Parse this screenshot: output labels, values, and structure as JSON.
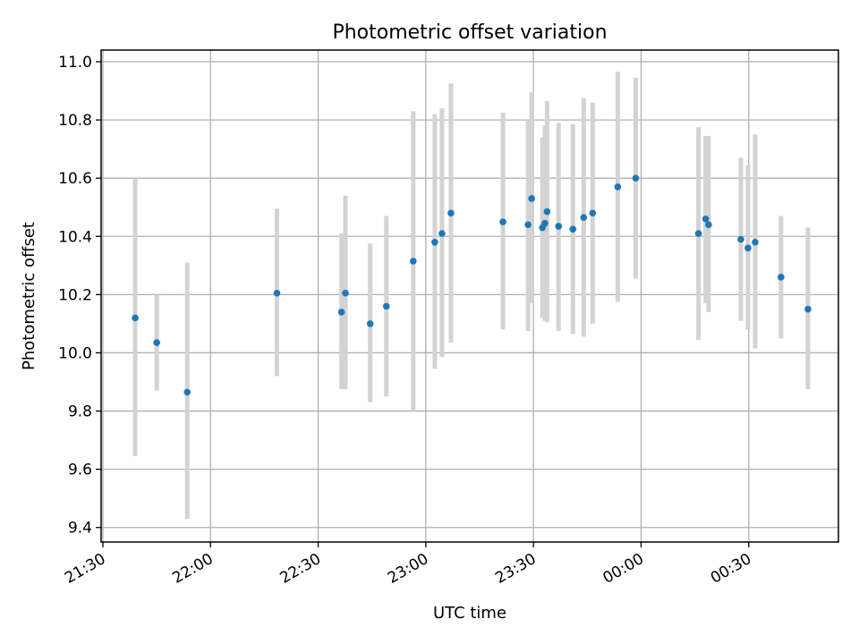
{
  "chart_data": {
    "type": "scatter",
    "title": "Photometric offset variation",
    "xlabel": "UTC time",
    "ylabel": "Photometric offset",
    "x_axis": {
      "unit": "minutes after 21:30 UTC",
      "min": -0.5,
      "max": 205,
      "ticks": [
        {
          "value": 0,
          "label": "21:30"
        },
        {
          "value": 30,
          "label": "22:00"
        },
        {
          "value": 60,
          "label": "22:30"
        },
        {
          "value": 90,
          "label": "23:00"
        },
        {
          "value": 120,
          "label": "23:30"
        },
        {
          "value": 150,
          "label": "00:00"
        },
        {
          "value": 180,
          "label": "00:30"
        }
      ]
    },
    "y_axis": {
      "min": 9.35,
      "max": 11.04,
      "ticks": [
        {
          "value": 9.4,
          "label": "9.4"
        },
        {
          "value": 9.6,
          "label": "9.6"
        },
        {
          "value": 9.8,
          "label": "9.8"
        },
        {
          "value": 10.0,
          "label": "10.0"
        },
        {
          "value": 10.2,
          "label": "10.2"
        },
        {
          "value": 10.4,
          "label": "10.4"
        },
        {
          "value": 10.6,
          "label": "10.6"
        },
        {
          "value": 10.8,
          "label": "10.8"
        },
        {
          "value": 11.0,
          "label": "11.0"
        }
      ]
    },
    "grid": true,
    "colors": {
      "points": "#1f77b4",
      "errorbars": "#d3d3d3",
      "grid": "#b0b0b0"
    },
    "series": [
      {
        "points": [
          {
            "x": 9.0,
            "y": 10.12,
            "ylo": 9.645,
            "yhi": 10.6
          },
          {
            "x": 15.0,
            "y": 10.035,
            "ylo": 9.87,
            "yhi": 10.2
          },
          {
            "x": 23.5,
            "y": 9.865,
            "ylo": 9.43,
            "yhi": 10.31
          },
          {
            "x": 48.5,
            "y": 10.205,
            "ylo": 9.92,
            "yhi": 10.495
          },
          {
            "x": 66.5,
            "y": 10.14,
            "ylo": 9.875,
            "yhi": 10.41
          },
          {
            "x": 67.6,
            "y": 10.205,
            "ylo": 9.875,
            "yhi": 10.54
          },
          {
            "x": 74.5,
            "y": 10.1,
            "ylo": 9.83,
            "yhi": 10.375
          },
          {
            "x": 79.0,
            "y": 10.16,
            "ylo": 9.85,
            "yhi": 10.47
          },
          {
            "x": 86.5,
            "y": 10.315,
            "ylo": 9.8,
            "yhi": 10.83
          },
          {
            "x": 92.5,
            "y": 10.38,
            "ylo": 9.945,
            "yhi": 10.82
          },
          {
            "x": 94.5,
            "y": 10.41,
            "ylo": 9.985,
            "yhi": 10.84
          },
          {
            "x": 97.0,
            "y": 10.48,
            "ylo": 10.035,
            "yhi": 10.925
          },
          {
            "x": 111.5,
            "y": 10.45,
            "ylo": 10.08,
            "yhi": 10.825
          },
          {
            "x": 118.5,
            "y": 10.44,
            "ylo": 10.075,
            "yhi": 10.8
          },
          {
            "x": 119.5,
            "y": 10.53,
            "ylo": 10.17,
            "yhi": 10.895
          },
          {
            "x": 122.5,
            "y": 10.43,
            "ylo": 10.12,
            "yhi": 10.74
          },
          {
            "x": 123.2,
            "y": 10.445,
            "ylo": 10.11,
            "yhi": 10.78
          },
          {
            "x": 123.8,
            "y": 10.485,
            "ylo": 10.105,
            "yhi": 10.865
          },
          {
            "x": 127.0,
            "y": 10.435,
            "ylo": 10.075,
            "yhi": 10.79
          },
          {
            "x": 131.0,
            "y": 10.425,
            "ylo": 10.065,
            "yhi": 10.785
          },
          {
            "x": 134.0,
            "y": 10.465,
            "ylo": 10.055,
            "yhi": 10.875
          },
          {
            "x": 136.5,
            "y": 10.48,
            "ylo": 10.1,
            "yhi": 10.86
          },
          {
            "x": 143.5,
            "y": 10.57,
            "ylo": 10.175,
            "yhi": 10.965
          },
          {
            "x": 148.5,
            "y": 10.6,
            "ylo": 10.255,
            "yhi": 10.945
          },
          {
            "x": 166.0,
            "y": 10.41,
            "ylo": 10.045,
            "yhi": 10.775
          },
          {
            "x": 168.0,
            "y": 10.46,
            "ylo": 10.17,
            "yhi": 10.745
          },
          {
            "x": 168.8,
            "y": 10.44,
            "ylo": 10.14,
            "yhi": 10.745
          },
          {
            "x": 177.8,
            "y": 10.39,
            "ylo": 10.11,
            "yhi": 10.67
          },
          {
            "x": 179.8,
            "y": 10.36,
            "ylo": 10.08,
            "yhi": 10.645
          },
          {
            "x": 181.8,
            "y": 10.38,
            "ylo": 10.015,
            "yhi": 10.75
          },
          {
            "x": 189.0,
            "y": 10.26,
            "ylo": 10.05,
            "yhi": 10.47
          },
          {
            "x": 196.5,
            "y": 10.15,
            "ylo": 9.875,
            "yhi": 10.43
          }
        ]
      }
    ]
  }
}
